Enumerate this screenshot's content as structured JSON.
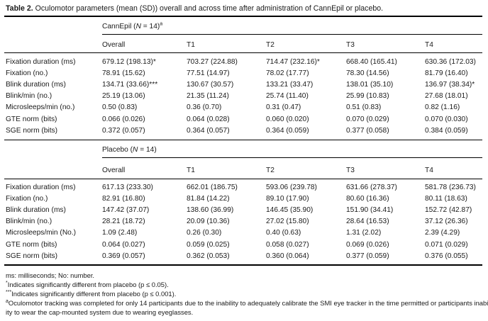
{
  "caption": {
    "label": "Table 2.",
    "text": "Oculomotor parameters (mean (SD)) overall and across time after administration of CannEpil or placebo."
  },
  "groups": [
    {
      "title_pre": "CannEpil (",
      "title_n": "N",
      "title_post": " = 14)",
      "title_sup": "a",
      "columns": [
        "Overall",
        "T1",
        "T2",
        "T3",
        "T4"
      ],
      "rows": [
        {
          "label": "Fixation duration (ms)",
          "cells": [
            "679.12 (198.13)*",
            "703.27 (224.88)",
            "714.47 (232.16)*",
            "668.40 (165.41)",
            "630.36 (172.03)"
          ]
        },
        {
          "label": "Fixation (no.)",
          "cells": [
            "78.91 (15.62)",
            "77.51 (14.97)",
            "78.02 (17.77)",
            "78.30 (14.56)",
            "81.79 (16.40)"
          ]
        },
        {
          "label": "Blink duration (ms)",
          "cells": [
            "134.71 (33.66)***",
            "130.67 (30.57)",
            "133.21 (33.47)",
            "138.01 (35.10)",
            "136.97 (38.34)*"
          ]
        },
        {
          "label": "Blink/min (no.)",
          "cells": [
            "25.19 (13.06)",
            "21.35 (11.24)",
            "25.74 (11.40)",
            "25.99 (10.83)",
            "27.68 (18.01)"
          ]
        },
        {
          "label": "Microsleeps/min (no.)",
          "cells": [
            "0.50 (0.83)",
            "0.36 (0.70)",
            "0.31 (0.47)",
            "0.51 (0.83)",
            "0.82 (1.16)"
          ]
        },
        {
          "label": "GTE norm (bits)",
          "cells": [
            "0.066 (0.026)",
            "0.064 (0.028)",
            "0.060 (0.020)",
            "0.070 (0.029)",
            "0.070 (0.030)"
          ]
        },
        {
          "label": "SGE norm (bits)",
          "cells": [
            "0.372 (0.057)",
            "0.364 (0.057)",
            "0.364 (0.059)",
            "0.377 (0.058)",
            "0.384 (0.059)"
          ]
        }
      ]
    },
    {
      "title_pre": "Placebo (",
      "title_n": "N",
      "title_post": " = 14)",
      "title_sup": "",
      "columns": [
        "Overall",
        "T1",
        "T2",
        "T3",
        "T4"
      ],
      "rows": [
        {
          "label": "Fixation duration (ms)",
          "cells": [
            "617.13 (233.30)",
            "662.01 (186.75)",
            "593.06 (239.78)",
            "631.66 (278.37)",
            "581.78 (236.73)"
          ]
        },
        {
          "label": "Fixation (no.)",
          "cells": [
            "82.91 (16.80)",
            "81.84 (14.22)",
            "89.10 (17.90)",
            "80.60 (16.36)",
            "80.11 (18.63)"
          ]
        },
        {
          "label": "Blink duration (ms)",
          "cells": [
            "147.42 (37.07)",
            "138.60 (36.99)",
            "146.45 (35.90)",
            "151.90 (34.41)",
            "152.72 (42.87)"
          ]
        },
        {
          "label": "Blink/min (no.)",
          "cells": [
            "28.21 (18.72)",
            "20.09 (10.36)",
            "27.02 (15.80)",
            "28.64 (16.53)",
            "37.12 (26.36)"
          ]
        },
        {
          "label": "Microsleeps/min (No.)",
          "cells": [
            "1.09 (2.48)",
            "0.26 (0.30)",
            "0.40 (0.63)",
            "1.31 (2.02)",
            "2.39 (4.29)"
          ]
        },
        {
          "label": "GTE norm (bits)",
          "cells": [
            "0.064 (0.027)",
            "0.059 (0.025)",
            "0.058 (0.027)",
            "0.069 (0.026)",
            "0.071 (0.029)"
          ]
        },
        {
          "label": "SGE norm (bits)",
          "cells": [
            "0.369 (0.057)",
            "0.362 (0.053)",
            "0.360 (0.064)",
            "0.377 (0.059)",
            "0.376 (0.055)"
          ]
        }
      ]
    }
  ],
  "footnotes": {
    "abbrev": "ms: milliseconds; No: number.",
    "note1_mark": "*",
    "note1": "Indicates significantly different from placebo (p ≤ 0.05).",
    "note2_mark": "***",
    "note2": "Indicates significantly different from placebo (p ≤ 0.001).",
    "note3_mark": "a",
    "note3_line1": "Oculomotor tracking was completed for only 14 participants due to the inability to adequately calibrate the SMI eye tracker in the time permitted or participants inabil-",
    "note3_line2": "ity to wear the cap-mounted system due to wearing eyeglasses."
  }
}
